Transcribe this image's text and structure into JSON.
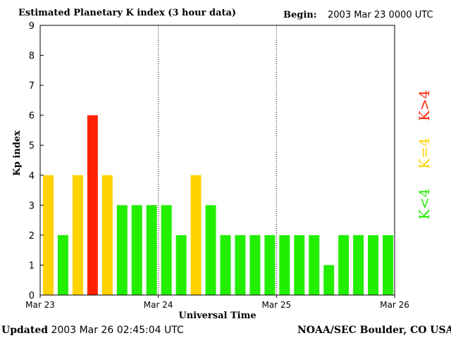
{
  "header": {
    "title": "Estimated Planetary K index (3 hour data)",
    "begin_label": "Begin:",
    "begin_value": "2003 Mar 23 0000 UTC"
  },
  "footer": {
    "updated_label": "Updated",
    "updated_value": "2003 Mar 26 02:45:04 UTC",
    "credit": "NOAA/SEC Boulder, CO USA"
  },
  "legend": {
    "low": "K<4",
    "mid": "K=4",
    "high": "K>4"
  },
  "colors": {
    "low": "#22ee00",
    "mid": "#ffd200",
    "high": "#ff2200"
  },
  "chart_data": {
    "type": "bar",
    "title": "Estimated Planetary K index (3 hour data)",
    "xlabel": "Universal Time",
    "ylabel": "Kp index",
    "ylim": [
      0,
      9
    ],
    "yticks": [
      "0",
      "1",
      "2",
      "3",
      "4",
      "5",
      "6",
      "7",
      "8",
      "9"
    ],
    "xticks": [
      "Mar 23",
      "Mar 24",
      "Mar 25",
      "Mar 26"
    ],
    "day_separators": "dotted",
    "values": [
      4,
      2,
      4,
      6,
      4,
      3,
      3,
      3,
      3,
      2,
      4,
      3,
      2,
      2,
      2,
      2,
      2,
      2,
      2,
      1,
      2,
      2,
      2,
      2
    ]
  }
}
